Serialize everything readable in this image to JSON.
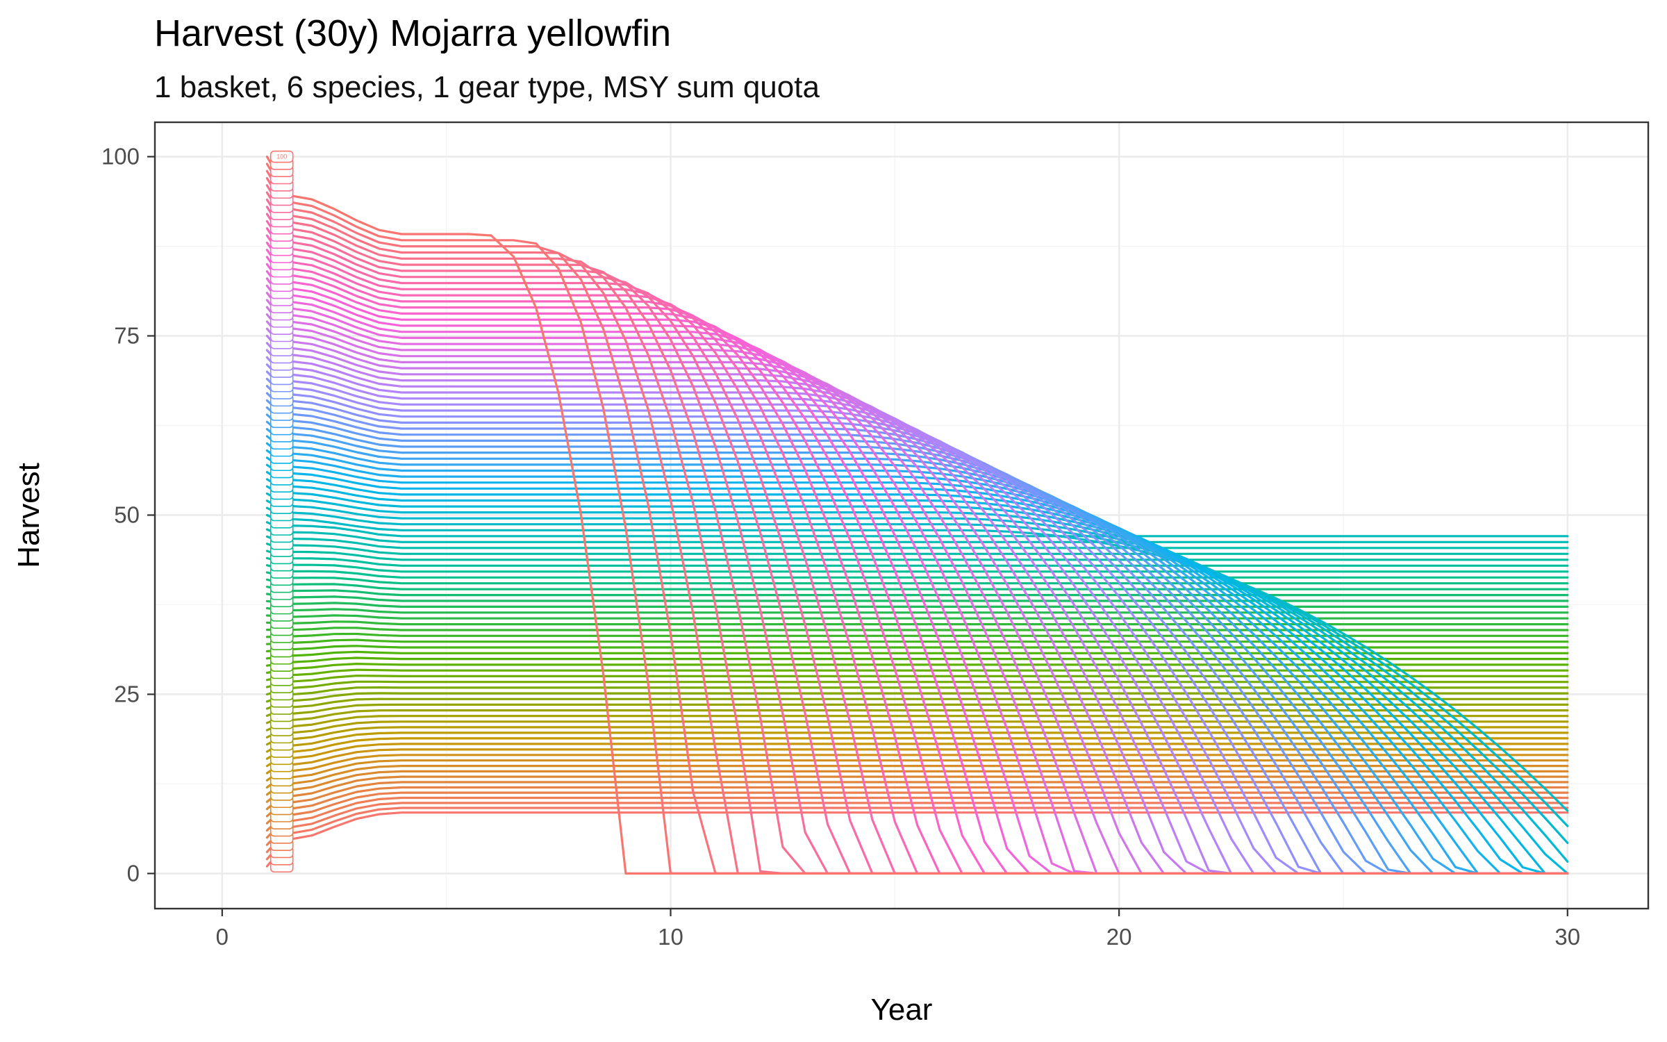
{
  "chart_data": {
    "type": "line",
    "title": "Harvest (30y) Mojarra yellowfin",
    "subtitle": "1 basket, 6 species, 1 gear type, MSY sum quota",
    "xlabel": "Year",
    "ylabel": "Harvest",
    "xlim": [
      -1.5,
      31.8
    ],
    "ylim": [
      -4.9,
      104.8
    ],
    "xticks": [
      0,
      10,
      20,
      30
    ],
    "yticks": [
      0,
      25,
      50,
      75,
      100
    ],
    "grid": true,
    "legend": "none",
    "series_label_first": "1",
    "series_label_last": "100",
    "series_count": 100,
    "x_start": 1,
    "x_end": 30,
    "series_summary": {
      "start_value_year1": "equal to series level (1 to 100)",
      "steady_low_level_max": 8.5,
      "steady_high_level_max": 89.2,
      "collapse_to_zero_year_range": [
        9,
        30
      ]
    },
    "color_scale": [
      "#f8766d",
      "#c49a00",
      "#53b400",
      "#00c094",
      "#00b6eb",
      "#a58aff",
      "#fb61d7",
      "#f8766d"
    ]
  }
}
